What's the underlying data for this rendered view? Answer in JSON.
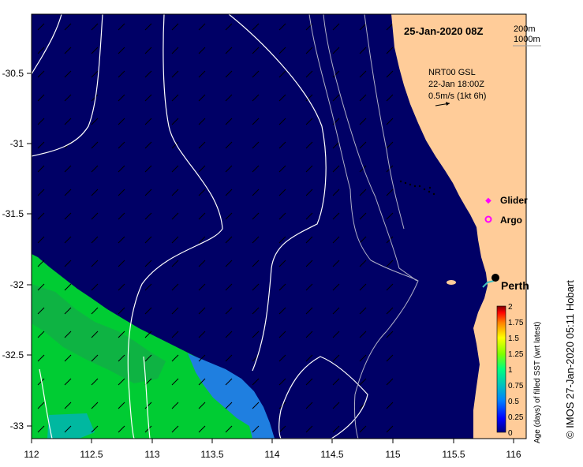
{
  "map": {
    "title": "25-Jan-2020 08Z",
    "depth_legend": [
      "200m",
      "1000m"
    ],
    "current_info": {
      "product": "NRT00 GSL",
      "time": "22-Jan 18:00Z",
      "scale": "0.5m/s (1kt 6h)"
    },
    "legend": {
      "glider_label": "Glider",
      "argo_label": "Argo",
      "glider_color": "#ff00ff",
      "argo_color": "#ff00ff"
    },
    "city_label": "Perth",
    "colorbar": {
      "title": "Age (days) of filled SST (wrt latest)",
      "ticks": [
        "2",
        "1.75",
        "1.5",
        "1.25",
        "1",
        "0.75",
        "0.5",
        "0.25",
        "0"
      ],
      "colors": [
        "#00007f",
        "#0000ff",
        "#007fff",
        "#00c0c0",
        "#00ff7f",
        "#7fff00",
        "#ffff00",
        "#ff7f00",
        "#ff0000",
        "#7f0000"
      ]
    },
    "credit": "© IMOS 27-Jan-2020 05:11 Hobart",
    "x_axis": {
      "ticks": [
        "112",
        "112.5",
        "113",
        "113.5",
        "114",
        "114.5",
        "115",
        "115.5",
        "116"
      ],
      "range": [
        112,
        116.2
      ]
    },
    "y_axis": {
      "ticks": [
        "-30.5",
        "-31",
        "-31.5",
        "-32",
        "-32.5",
        "-33"
      ],
      "range": [
        -33.1,
        -30.1
      ]
    },
    "colors": {
      "ocean": "#000066",
      "land": "#ffcc99",
      "contour": "#ffffff",
      "bathymetry": "#b0b0c8",
      "sst_recent": "#00cc33",
      "sst_mid": "#1f7fe0",
      "sst_cyan": "#00b8a0"
    }
  }
}
